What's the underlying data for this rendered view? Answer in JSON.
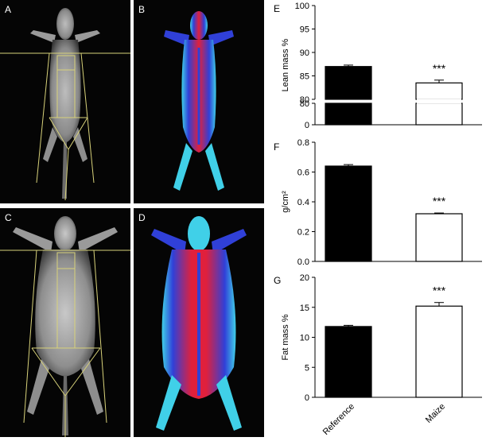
{
  "panels": {
    "a": {
      "label": "A"
    },
    "b": {
      "label": "B"
    },
    "c": {
      "label": "C"
    },
    "d": {
      "label": "D"
    },
    "e": {
      "label": "E"
    },
    "f": {
      "label": "F"
    },
    "g": {
      "label": "G"
    }
  },
  "colors": {
    "scan_background": "#050505",
    "bone_gray": "#c8c8c8",
    "roi_lines": "#d8d27a",
    "heat_red": "#e0203c",
    "heat_blue": "#3040d8",
    "heat_cyan": "#40d0e8",
    "reference_bar": "#000000",
    "maize_bar": "#ffffff"
  },
  "chart_data": [
    {
      "panel": "E",
      "type": "bar",
      "categories": [
        "Reference",
        "Maize"
      ],
      "values": [
        87.0,
        83.5
      ],
      "errors": [
        0.3,
        0.6
      ],
      "ylabel": "Lean mass %",
      "broken_axis": true,
      "upper_range": [
        80,
        100
      ],
      "upper_ticks": [
        80,
        85,
        90,
        95,
        100
      ],
      "lower_range": [
        0,
        80
      ],
      "lower_ticks": [
        0,
        80
      ],
      "significance": [
        "",
        "***"
      ]
    },
    {
      "panel": "F",
      "type": "bar",
      "categories": [
        "Reference",
        "Maize"
      ],
      "values": [
        0.64,
        0.32
      ],
      "errors": [
        0.01,
        0.005
      ],
      "ylabel": "g/cm²",
      "ylim": [
        0,
        0.8
      ],
      "ticks": [
        0.0,
        0.2,
        0.4,
        0.6,
        0.8
      ],
      "tick_labels": [
        "0.0",
        "0.2",
        "0.4",
        "0.6",
        "0.8"
      ],
      "significance": [
        "",
        "***"
      ]
    },
    {
      "panel": "G",
      "type": "bar",
      "categories": [
        "Reference",
        "Maize"
      ],
      "values": [
        11.8,
        15.2
      ],
      "errors": [
        0.2,
        0.6
      ],
      "ylabel": "Fat mass %",
      "ylim": [
        0,
        20
      ],
      "ticks": [
        0,
        5,
        10,
        15,
        20
      ],
      "significance": [
        "",
        "***"
      ]
    }
  ]
}
